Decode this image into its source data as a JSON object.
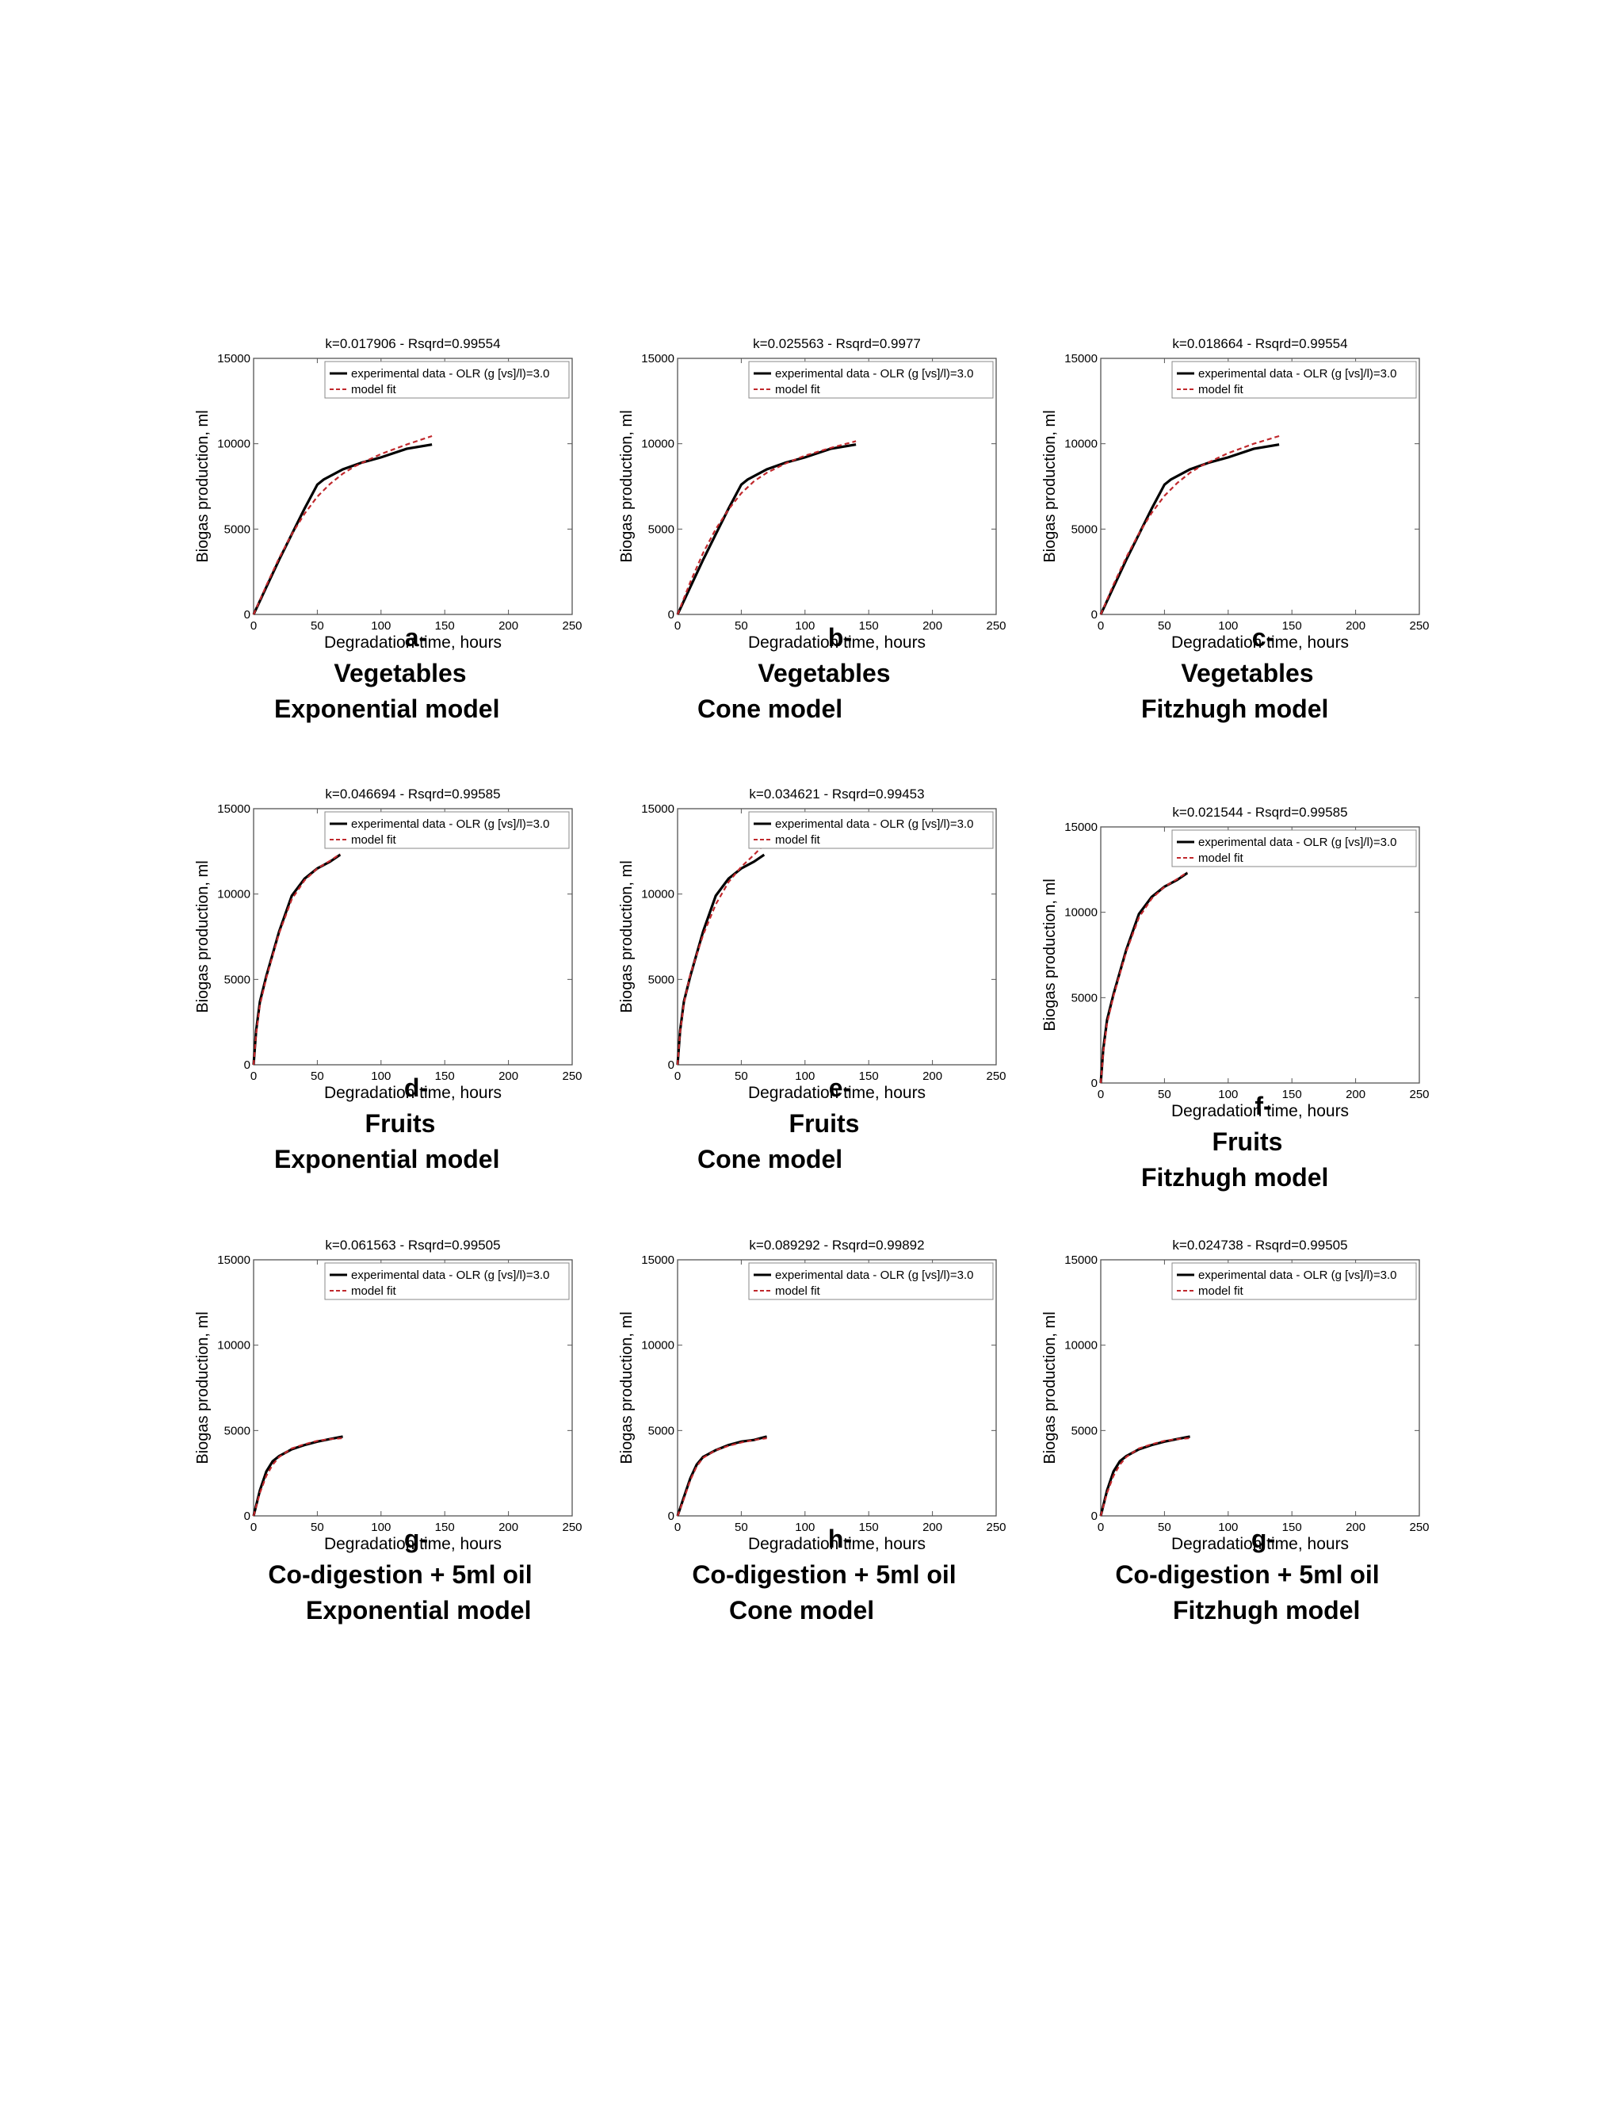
{
  "colors": {
    "experimental": "#000000",
    "model": "#c0282c",
    "axes": "#555555",
    "grid_ticks": "#888888"
  },
  "chart_data": [
    {
      "type": "line",
      "title": "k=0.017906 - Rsqrd=0.99554",
      "xlabel": "Degradation time, hours",
      "ylabel": "Biogas production, ml",
      "xlim": [
        0,
        250
      ],
      "ylim": [
        0,
        15000
      ],
      "xticks": [
        0,
        50,
        100,
        150,
        200,
        250
      ],
      "yticks": [
        0,
        5000,
        10000,
        15000
      ],
      "legend": {
        "position": "top-right",
        "entries": [
          "experimental data - OLR (g [vs]/l)=3.0",
          "model fit"
        ]
      },
      "series": [
        {
          "name": "experimental data - OLR (g [vs]/l)=3.0",
          "style": "solid",
          "x": [
            0,
            10,
            20,
            30,
            40,
            50,
            55,
            70,
            85,
            100,
            120,
            140
          ],
          "y": [
            0,
            1600,
            3200,
            4700,
            6200,
            7600,
            7900,
            8500,
            8900,
            9200,
            9700,
            9950
          ]
        },
        {
          "name": "model fit",
          "style": "dashed",
          "x": [
            0,
            10,
            20,
            30,
            40,
            50,
            60,
            70,
            80,
            100,
            120,
            140
          ],
          "y": [
            0,
            1700,
            3300,
            4700,
            5900,
            6900,
            7650,
            8250,
            8700,
            9400,
            9950,
            10450
          ]
        }
      ],
      "caption": [
        "a-",
        "Vegetables",
        "Exponential model"
      ]
    },
    {
      "type": "line",
      "title": "k=0.025563 - Rsqrd=0.9977",
      "xlabel": "Degradation time, hours",
      "ylabel": "Biogas production, ml",
      "xlim": [
        0,
        250
      ],
      "ylim": [
        0,
        15000
      ],
      "xticks": [
        0,
        50,
        100,
        150,
        200,
        250
      ],
      "yticks": [
        0,
        5000,
        10000,
        15000
      ],
      "legend": {
        "position": "top-right",
        "entries": [
          "experimental data - OLR (g [vs]/l)=3.0",
          "model fit"
        ]
      },
      "series": [
        {
          "name": "experimental data - OLR (g [vs]/l)=3.0",
          "style": "solid",
          "x": [
            0,
            10,
            20,
            30,
            40,
            50,
            55,
            70,
            85,
            100,
            120,
            140
          ],
          "y": [
            0,
            1600,
            3200,
            4700,
            6200,
            7600,
            7900,
            8500,
            8900,
            9200,
            9700,
            9950
          ]
        },
        {
          "name": "model fit",
          "style": "dashed",
          "x": [
            0,
            10,
            20,
            30,
            40,
            50,
            60,
            70,
            85,
            100,
            120,
            140
          ],
          "y": [
            0,
            1900,
            3600,
            5000,
            6150,
            7100,
            7800,
            8300,
            8850,
            9300,
            9750,
            10150
          ]
        }
      ],
      "caption": [
        "b-",
        "Vegetables",
        "Cone model"
      ]
    },
    {
      "type": "line",
      "title": "k=0.018664 - Rsqrd=0.99554",
      "xlabel": "Degradation time, hours",
      "ylabel": "Biogas production, ml",
      "xlim": [
        0,
        250
      ],
      "ylim": [
        0,
        15000
      ],
      "xticks": [
        0,
        50,
        100,
        150,
        200,
        250
      ],
      "yticks": [
        0,
        5000,
        10000,
        15000
      ],
      "legend": {
        "position": "top-right",
        "entries": [
          "experimental data - OLR (g [vs]/l)=3.0",
          "model fit"
        ]
      },
      "series": [
        {
          "name": "experimental data - OLR (g [vs]/l)=3.0",
          "style": "solid",
          "x": [
            0,
            10,
            20,
            30,
            40,
            50,
            55,
            70,
            85,
            100,
            120,
            140
          ],
          "y": [
            0,
            1600,
            3200,
            4700,
            6200,
            7600,
            7900,
            8500,
            8900,
            9200,
            9700,
            9950
          ]
        },
        {
          "name": "model fit",
          "style": "dashed",
          "x": [
            0,
            10,
            20,
            30,
            40,
            50,
            60,
            70,
            80,
            100,
            120,
            140
          ],
          "y": [
            0,
            1750,
            3350,
            4750,
            5950,
            6950,
            7700,
            8300,
            8750,
            9450,
            10000,
            10450
          ]
        }
      ],
      "caption": [
        "c-",
        "Vegetables",
        "Fitzhugh model"
      ]
    },
    {
      "type": "line",
      "title": "k=0.046694 - Rsqrd=0.99585",
      "xlabel": "Degradation time, hours",
      "ylabel": "Biogas production, ml",
      "xlim": [
        0,
        250
      ],
      "ylim": [
        0,
        15000
      ],
      "xticks": [
        0,
        50,
        100,
        150,
        200,
        250
      ],
      "yticks": [
        0,
        5000,
        10000,
        15000
      ],
      "legend": {
        "position": "top-right",
        "entries": [
          "experimental data - OLR (g [vs]/l)=3.0",
          "model fit"
        ]
      },
      "series": [
        {
          "name": "experimental data - OLR (g [vs]/l)=3.0",
          "style": "solid",
          "x": [
            0,
            2,
            5,
            10,
            20,
            30,
            40,
            50,
            60,
            68
          ],
          "y": [
            0,
            2000,
            3700,
            5200,
            7800,
            9900,
            10900,
            11500,
            11900,
            12300
          ]
        },
        {
          "name": "model fit",
          "style": "dashed",
          "x": [
            0,
            2,
            5,
            10,
            20,
            30,
            40,
            50,
            60,
            68
          ],
          "y": [
            0,
            1800,
            3500,
            5100,
            7700,
            9700,
            10800,
            11500,
            11950,
            12350
          ]
        }
      ],
      "caption": [
        "d-",
        "Fruits",
        "Exponential model"
      ]
    },
    {
      "type": "line",
      "title": "k=0.034621 - Rsqrd=0.99453",
      "xlabel": "Degradation time, hours",
      "ylabel": "Biogas production, ml",
      "xlim": [
        0,
        250
      ],
      "ylim": [
        0,
        15000
      ],
      "xticks": [
        0,
        50,
        100,
        150,
        200,
        250
      ],
      "yticks": [
        0,
        5000,
        10000,
        15000
      ],
      "legend": {
        "position": "top-right",
        "entries": [
          "experimental data - OLR (g [vs]/l)=3.0",
          "model fit"
        ]
      },
      "series": [
        {
          "name": "experimental data - OLR (g [vs]/l)=3.0",
          "style": "solid",
          "x": [
            0,
            2,
            5,
            10,
            20,
            30,
            40,
            50,
            60,
            68
          ],
          "y": [
            0,
            2000,
            3700,
            5200,
            7800,
            9900,
            10900,
            11500,
            11900,
            12300
          ]
        },
        {
          "name": "model fit",
          "style": "dashed",
          "x": [
            0,
            2,
            5,
            10,
            20,
            30,
            40,
            50,
            60,
            68
          ],
          "y": [
            0,
            1900,
            3600,
            5300,
            7600,
            9400,
            10700,
            11600,
            12300,
            12900
          ]
        }
      ],
      "caption": [
        "e-",
        "Fruits",
        "Cone model"
      ]
    },
    {
      "type": "line",
      "title": "k=0.021544 - Rsqrd=0.99585",
      "xlabel": "Degradation time, hours",
      "ylabel": "Biogas production, ml",
      "xlim": [
        0,
        250
      ],
      "ylim": [
        0,
        15000
      ],
      "xticks": [
        0,
        50,
        100,
        150,
        200,
        250
      ],
      "yticks": [
        0,
        5000,
        10000,
        15000
      ],
      "legend": {
        "position": "top-right",
        "entries": [
          "experimental data - OLR (g [vs]/l)=3.0",
          "model fit"
        ]
      },
      "series": [
        {
          "name": "experimental data - OLR (g [vs]/l)=3.0",
          "style": "solid",
          "x": [
            0,
            2,
            5,
            10,
            20,
            30,
            40,
            50,
            60,
            68
          ],
          "y": [
            0,
            2000,
            3700,
            5200,
            7800,
            9900,
            10900,
            11500,
            11900,
            12300
          ]
        },
        {
          "name": "model fit",
          "style": "dashed",
          "x": [
            0,
            2,
            5,
            10,
            20,
            30,
            40,
            50,
            60,
            68
          ],
          "y": [
            0,
            1800,
            3500,
            5100,
            7700,
            9700,
            10800,
            11500,
            11950,
            12350
          ]
        }
      ],
      "caption": [
        "f-",
        "Fruits",
        "Fitzhugh model"
      ]
    },
    {
      "type": "line",
      "title": "k=0.061563 - Rsqrd=0.99505",
      "xlabel": "Degradation time, hours",
      "ylabel": "Biogas production, ml",
      "xlim": [
        0,
        250
      ],
      "ylim": [
        0,
        15000
      ],
      "xticks": [
        0,
        50,
        100,
        150,
        200,
        250
      ],
      "yticks": [
        0,
        5000,
        10000,
        15000
      ],
      "legend": {
        "position": "top-right",
        "entries": [
          "experimental data - OLR (g [vs]/l)=3.0",
          "model fit"
        ]
      },
      "series": [
        {
          "name": "experimental data - OLR (g [vs]/l)=3.0",
          "style": "solid",
          "x": [
            0,
            5,
            10,
            15,
            20,
            30,
            40,
            50,
            60,
            70
          ],
          "y": [
            0,
            1500,
            2600,
            3200,
            3500,
            3900,
            4150,
            4350,
            4500,
            4650
          ]
        },
        {
          "name": "model fit",
          "style": "dashed",
          "x": [
            0,
            5,
            10,
            15,
            20,
            30,
            40,
            50,
            60,
            70
          ],
          "y": [
            0,
            1350,
            2350,
            3000,
            3450,
            3950,
            4200,
            4400,
            4500,
            4550
          ]
        }
      ],
      "caption": [
        "g-",
        "Co-digestion + 5ml oil",
        "Exponential model"
      ]
    },
    {
      "type": "line",
      "title": "k=0.089292 - Rsqrd=0.99892",
      "xlabel": "Degradation time, hours",
      "ylabel": "Biogas production, ml",
      "xlim": [
        0,
        250
      ],
      "ylim": [
        0,
        15000
      ],
      "xticks": [
        0,
        50,
        100,
        150,
        200,
        250
      ],
      "yticks": [
        0,
        5000,
        10000,
        15000
      ],
      "legend": {
        "position": "top-right",
        "entries": [
          "experimental data - OLR (g [vs]/l)=3.0",
          "model fit"
        ]
      },
      "series": [
        {
          "name": "experimental data - OLR (g [vs]/l)=3.0",
          "style": "solid",
          "x": [
            0,
            5,
            10,
            15,
            20,
            30,
            40,
            50,
            60,
            70
          ],
          "y": [
            0,
            1100,
            2200,
            3000,
            3450,
            3850,
            4150,
            4350,
            4450,
            4650
          ]
        },
        {
          "name": "model fit",
          "style": "dashed",
          "x": [
            0,
            5,
            10,
            15,
            20,
            30,
            40,
            50,
            60,
            70
          ],
          "y": [
            0,
            1000,
            2100,
            2900,
            3400,
            3850,
            4100,
            4300,
            4450,
            4550
          ]
        }
      ],
      "caption": [
        "h-",
        "Co-digestion + 5ml oil",
        "Cone model"
      ]
    },
    {
      "type": "line",
      "title": "k=0.024738 - Rsqrd=0.99505",
      "xlabel": "Degradation time, hours",
      "ylabel": "Biogas production, ml",
      "xlim": [
        0,
        250
      ],
      "ylim": [
        0,
        15000
      ],
      "xticks": [
        0,
        50,
        100,
        150,
        200,
        250
      ],
      "yticks": [
        0,
        5000,
        10000,
        15000
      ],
      "legend": {
        "position": "top-right",
        "entries": [
          "experimental data - OLR (g [vs]/l)=3.0",
          "model fit"
        ]
      },
      "series": [
        {
          "name": "experimental data - OLR (g [vs]/l)=3.0",
          "style": "solid",
          "x": [
            0,
            5,
            10,
            15,
            20,
            30,
            40,
            50,
            60,
            70
          ],
          "y": [
            0,
            1500,
            2600,
            3200,
            3500,
            3900,
            4150,
            4350,
            4500,
            4650
          ]
        },
        {
          "name": "model fit",
          "style": "dashed",
          "x": [
            0,
            5,
            10,
            15,
            20,
            30,
            40,
            50,
            60,
            70
          ],
          "y": [
            0,
            1350,
            2350,
            3000,
            3450,
            3950,
            4200,
            4400,
            4500,
            4550
          ]
        }
      ],
      "caption": [
        "g-",
        "Co-digestion + 5ml oil",
        "Fitzhugh model"
      ]
    }
  ]
}
